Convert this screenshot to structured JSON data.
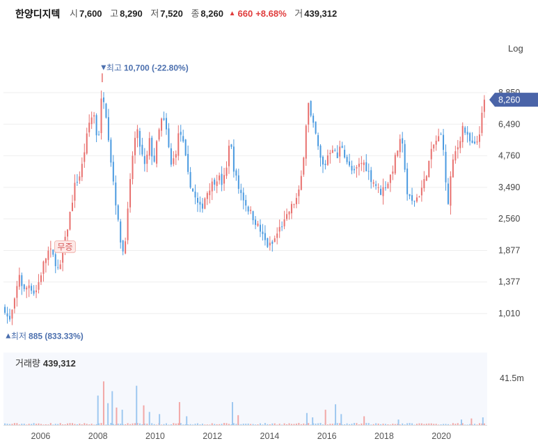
{
  "header": {
    "name": "한양디지텍",
    "open_label": "시",
    "open": "7,600",
    "high_label": "고",
    "high": "8,290",
    "low_label": "저",
    "low": "7,520",
    "close_label": "종",
    "close": "8,260",
    "change": "660",
    "change_pct": "+8.68%",
    "volume_label": "거",
    "volume": "439,312"
  },
  "chart_data": {
    "type": "candlestick",
    "scale_label": "Log",
    "y_ticks": [
      "8,850",
      "6,490",
      "4,760",
      "3,490",
      "2,560",
      "1,877",
      "1,377",
      "1,010"
    ],
    "y_tick_values": [
      8850,
      6490,
      4760,
      3490,
      2560,
      1877,
      1377,
      1010
    ],
    "x_ticks": [
      "2006",
      "2008",
      "2010",
      "2012",
      "2014",
      "2016",
      "2018",
      "2020"
    ],
    "x_tick_values": [
      2006,
      2008,
      2010,
      2012,
      2014,
      2016,
      2018,
      2020
    ],
    "x_range": [
      2004.7,
      2021.6
    ],
    "current_price_label": "8,260",
    "current_price": 8260,
    "max_label_prefix": "최고",
    "max_label_value": "10,700 (-22.80%)",
    "max_point": {
      "x": 2008.15,
      "y": 10700
    },
    "min_label_prefix": "최저",
    "min_label_value": "885 (833.33%)",
    "min_point": {
      "x": 2004.82,
      "y": 885
    },
    "badge_text": "무증",
    "badge_point": {
      "x": 2006.85,
      "y": 1940
    },
    "volume_label": "거래량",
    "volume_value": "439,312",
    "volume_axis_label": "41.5m",
    "volume_axis_value": 41.5,
    "colors": {
      "up": "#e8706e",
      "down": "#4a9ae0",
      "current": "#4a64a8",
      "grid": "#eeeeee"
    },
    "price_path": [
      [
        2004.75,
        1060
      ],
      [
        2004.9,
        920
      ],
      [
        2005.1,
        1150
      ],
      [
        2005.25,
        1500
      ],
      [
        2005.4,
        1250
      ],
      [
        2005.6,
        1350
      ],
      [
        2005.8,
        1220
      ],
      [
        2005.95,
        1400
      ],
      [
        2006.1,
        1650
      ],
      [
        2006.3,
        1900
      ],
      [
        2006.5,
        1700
      ],
      [
        2006.65,
        1500
      ],
      [
        2006.8,
        1900
      ],
      [
        2007.0,
        2600
      ],
      [
        2007.2,
        3600
      ],
      [
        2007.4,
        4000
      ],
      [
        2007.55,
        5200
      ],
      [
        2007.7,
        6600
      ],
      [
        2007.85,
        7300
      ],
      [
        2008.0,
        5300
      ],
      [
        2008.15,
        9200
      ],
      [
        2008.3,
        7000
      ],
      [
        2008.45,
        4600
      ],
      [
        2008.6,
        3200
      ],
      [
        2008.75,
        2200
      ],
      [
        2008.9,
        1800
      ],
      [
        2009.05,
        2800
      ],
      [
        2009.2,
        4700
      ],
      [
        2009.35,
        6200
      ],
      [
        2009.5,
        5000
      ],
      [
        2009.65,
        4200
      ],
      [
        2009.8,
        5500
      ],
      [
        2009.95,
        4400
      ],
      [
        2010.1,
        5800
      ],
      [
        2010.25,
        7000
      ],
      [
        2010.4,
        6000
      ],
      [
        2010.55,
        4300
      ],
      [
        2010.7,
        4800
      ],
      [
        2010.85,
        6200
      ],
      [
        2011.0,
        5200
      ],
      [
        2011.15,
        3900
      ],
      [
        2011.3,
        3400
      ],
      [
        2011.45,
        3000
      ],
      [
        2011.6,
        2800
      ],
      [
        2011.75,
        3200
      ],
      [
        2011.9,
        3500
      ],
      [
        2012.05,
        3700
      ],
      [
        2012.2,
        3900
      ],
      [
        2012.35,
        3600
      ],
      [
        2012.5,
        4200
      ],
      [
        2012.6,
        5800
      ],
      [
        2012.75,
        4200
      ],
      [
        2012.9,
        3500
      ],
      [
        2013.05,
        3200
      ],
      [
        2013.2,
        2900
      ],
      [
        2013.35,
        2700
      ],
      [
        2013.5,
        2500
      ],
      [
        2013.65,
        2300
      ],
      [
        2013.8,
        2100
      ],
      [
        2013.95,
        1950
      ],
      [
        2014.1,
        2000
      ],
      [
        2014.25,
        2200
      ],
      [
        2014.4,
        2400
      ],
      [
        2014.55,
        2500
      ],
      [
        2014.7,
        2800
      ],
      [
        2014.85,
        3000
      ],
      [
        2015.0,
        3200
      ],
      [
        2015.15,
        4200
      ],
      [
        2015.25,
        6200
      ],
      [
        2015.35,
        8000
      ],
      [
        2015.45,
        6800
      ],
      [
        2015.6,
        5900
      ],
      [
        2015.75,
        4700
      ],
      [
        2015.9,
        4200
      ],
      [
        2016.05,
        4900
      ],
      [
        2016.2,
        5200
      ],
      [
        2016.35,
        4600
      ],
      [
        2016.5,
        5400
      ],
      [
        2016.65,
        4700
      ],
      [
        2016.8,
        4200
      ],
      [
        2016.95,
        4000
      ],
      [
        2017.1,
        4300
      ],
      [
        2017.25,
        4500
      ],
      [
        2017.4,
        4200
      ],
      [
        2017.55,
        3800
      ],
      [
        2017.7,
        3600
      ],
      [
        2017.85,
        3300
      ],
      [
        2018.0,
        3500
      ],
      [
        2018.15,
        3700
      ],
      [
        2018.3,
        4200
      ],
      [
        2018.45,
        5000
      ],
      [
        2018.6,
        5600
      ],
      [
        2018.7,
        4600
      ],
      [
        2018.8,
        3300
      ],
      [
        2018.95,
        3000
      ],
      [
        2019.1,
        3100
      ],
      [
        2019.25,
        3300
      ],
      [
        2019.4,
        3700
      ],
      [
        2019.55,
        4400
      ],
      [
        2019.7,
        5200
      ],
      [
        2019.85,
        5600
      ],
      [
        2020.0,
        5800
      ],
      [
        2020.1,
        5000
      ],
      [
        2020.2,
        2650
      ],
      [
        2020.3,
        3700
      ],
      [
        2020.45,
        4800
      ],
      [
        2020.6,
        5300
      ],
      [
        2020.75,
        6400
      ],
      [
        2020.9,
        5700
      ],
      [
        2021.05,
        5300
      ],
      [
        2021.2,
        5200
      ],
      [
        2021.35,
        6200
      ],
      [
        2021.5,
        8260
      ]
    ],
    "volume_spikes": [
      {
        "x": 2008.0,
        "v": 27
      },
      {
        "x": 2008.2,
        "v": 40
      },
      {
        "x": 2008.35,
        "v": 20
      },
      {
        "x": 2008.5,
        "v": 31
      },
      {
        "x": 2008.65,
        "v": 16
      },
      {
        "x": 2008.85,
        "v": 14
      },
      {
        "x": 2009.35,
        "v": 36
      },
      {
        "x": 2009.6,
        "v": 18
      },
      {
        "x": 2009.8,
        "v": 12
      },
      {
        "x": 2010.15,
        "v": 10
      },
      {
        "x": 2010.85,
        "v": 21
      },
      {
        "x": 2011.1,
        "v": 8
      },
      {
        "x": 2012.7,
        "v": 21
      },
      {
        "x": 2012.9,
        "v": 9
      },
      {
        "x": 2015.3,
        "v": 11
      },
      {
        "x": 2015.5,
        "v": 7
      },
      {
        "x": 2015.95,
        "v": 14
      },
      {
        "x": 2016.3,
        "v": 19
      },
      {
        "x": 2016.5,
        "v": 10
      },
      {
        "x": 2017.3,
        "v": 8
      },
      {
        "x": 2018.5,
        "v": 5
      },
      {
        "x": 2020.7,
        "v": 5
      },
      {
        "x": 2021.05,
        "v": 6
      },
      {
        "x": 2021.45,
        "v": 7
      }
    ]
  }
}
